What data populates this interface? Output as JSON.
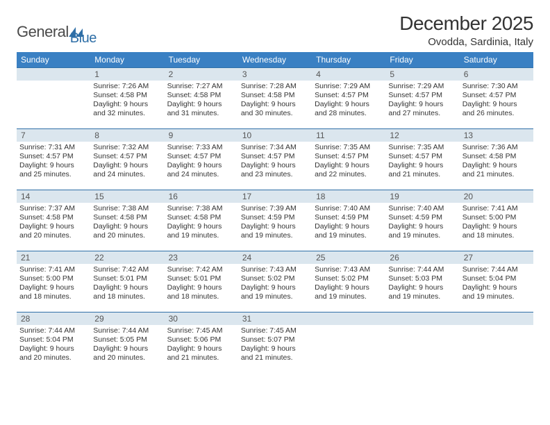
{
  "logo": {
    "part1": "General",
    "part2": "Blue"
  },
  "title": "December 2025",
  "location": "Ovodda, Sardinia, Italy",
  "colors": {
    "header_bg": "#3a80c3",
    "header_fg": "#ffffff",
    "daynum_bg": "#dbe6ee",
    "daynum_border": "#2f6fa7",
    "text": "#333333"
  },
  "weekdays": [
    "Sunday",
    "Monday",
    "Tuesday",
    "Wednesday",
    "Thursday",
    "Friday",
    "Saturday"
  ],
  "weeks": [
    [
      {
        "day": "",
        "sunrise": "",
        "sunset": "",
        "daylight": ""
      },
      {
        "day": "1",
        "sunrise": "Sunrise: 7:26 AM",
        "sunset": "Sunset: 4:58 PM",
        "daylight": "Daylight: 9 hours and 32 minutes."
      },
      {
        "day": "2",
        "sunrise": "Sunrise: 7:27 AM",
        "sunset": "Sunset: 4:58 PM",
        "daylight": "Daylight: 9 hours and 31 minutes."
      },
      {
        "day": "3",
        "sunrise": "Sunrise: 7:28 AM",
        "sunset": "Sunset: 4:58 PM",
        "daylight": "Daylight: 9 hours and 30 minutes."
      },
      {
        "day": "4",
        "sunrise": "Sunrise: 7:29 AM",
        "sunset": "Sunset: 4:57 PM",
        "daylight": "Daylight: 9 hours and 28 minutes."
      },
      {
        "day": "5",
        "sunrise": "Sunrise: 7:29 AM",
        "sunset": "Sunset: 4:57 PM",
        "daylight": "Daylight: 9 hours and 27 minutes."
      },
      {
        "day": "6",
        "sunrise": "Sunrise: 7:30 AM",
        "sunset": "Sunset: 4:57 PM",
        "daylight": "Daylight: 9 hours and 26 minutes."
      }
    ],
    [
      {
        "day": "7",
        "sunrise": "Sunrise: 7:31 AM",
        "sunset": "Sunset: 4:57 PM",
        "daylight": "Daylight: 9 hours and 25 minutes."
      },
      {
        "day": "8",
        "sunrise": "Sunrise: 7:32 AM",
        "sunset": "Sunset: 4:57 PM",
        "daylight": "Daylight: 9 hours and 24 minutes."
      },
      {
        "day": "9",
        "sunrise": "Sunrise: 7:33 AM",
        "sunset": "Sunset: 4:57 PM",
        "daylight": "Daylight: 9 hours and 24 minutes."
      },
      {
        "day": "10",
        "sunrise": "Sunrise: 7:34 AM",
        "sunset": "Sunset: 4:57 PM",
        "daylight": "Daylight: 9 hours and 23 minutes."
      },
      {
        "day": "11",
        "sunrise": "Sunrise: 7:35 AM",
        "sunset": "Sunset: 4:57 PM",
        "daylight": "Daylight: 9 hours and 22 minutes."
      },
      {
        "day": "12",
        "sunrise": "Sunrise: 7:35 AM",
        "sunset": "Sunset: 4:57 PM",
        "daylight": "Daylight: 9 hours and 21 minutes."
      },
      {
        "day": "13",
        "sunrise": "Sunrise: 7:36 AM",
        "sunset": "Sunset: 4:58 PM",
        "daylight": "Daylight: 9 hours and 21 minutes."
      }
    ],
    [
      {
        "day": "14",
        "sunrise": "Sunrise: 7:37 AM",
        "sunset": "Sunset: 4:58 PM",
        "daylight": "Daylight: 9 hours and 20 minutes."
      },
      {
        "day": "15",
        "sunrise": "Sunrise: 7:38 AM",
        "sunset": "Sunset: 4:58 PM",
        "daylight": "Daylight: 9 hours and 20 minutes."
      },
      {
        "day": "16",
        "sunrise": "Sunrise: 7:38 AM",
        "sunset": "Sunset: 4:58 PM",
        "daylight": "Daylight: 9 hours and 19 minutes."
      },
      {
        "day": "17",
        "sunrise": "Sunrise: 7:39 AM",
        "sunset": "Sunset: 4:59 PM",
        "daylight": "Daylight: 9 hours and 19 minutes."
      },
      {
        "day": "18",
        "sunrise": "Sunrise: 7:40 AM",
        "sunset": "Sunset: 4:59 PM",
        "daylight": "Daylight: 9 hours and 19 minutes."
      },
      {
        "day": "19",
        "sunrise": "Sunrise: 7:40 AM",
        "sunset": "Sunset: 4:59 PM",
        "daylight": "Daylight: 9 hours and 19 minutes."
      },
      {
        "day": "20",
        "sunrise": "Sunrise: 7:41 AM",
        "sunset": "Sunset: 5:00 PM",
        "daylight": "Daylight: 9 hours and 18 minutes."
      }
    ],
    [
      {
        "day": "21",
        "sunrise": "Sunrise: 7:41 AM",
        "sunset": "Sunset: 5:00 PM",
        "daylight": "Daylight: 9 hours and 18 minutes."
      },
      {
        "day": "22",
        "sunrise": "Sunrise: 7:42 AM",
        "sunset": "Sunset: 5:01 PM",
        "daylight": "Daylight: 9 hours and 18 minutes."
      },
      {
        "day": "23",
        "sunrise": "Sunrise: 7:42 AM",
        "sunset": "Sunset: 5:01 PM",
        "daylight": "Daylight: 9 hours and 18 minutes."
      },
      {
        "day": "24",
        "sunrise": "Sunrise: 7:43 AM",
        "sunset": "Sunset: 5:02 PM",
        "daylight": "Daylight: 9 hours and 19 minutes."
      },
      {
        "day": "25",
        "sunrise": "Sunrise: 7:43 AM",
        "sunset": "Sunset: 5:02 PM",
        "daylight": "Daylight: 9 hours and 19 minutes."
      },
      {
        "day": "26",
        "sunrise": "Sunrise: 7:44 AM",
        "sunset": "Sunset: 5:03 PM",
        "daylight": "Daylight: 9 hours and 19 minutes."
      },
      {
        "day": "27",
        "sunrise": "Sunrise: 7:44 AM",
        "sunset": "Sunset: 5:04 PM",
        "daylight": "Daylight: 9 hours and 19 minutes."
      }
    ],
    [
      {
        "day": "28",
        "sunrise": "Sunrise: 7:44 AM",
        "sunset": "Sunset: 5:04 PM",
        "daylight": "Daylight: 9 hours and 20 minutes."
      },
      {
        "day": "29",
        "sunrise": "Sunrise: 7:44 AM",
        "sunset": "Sunset: 5:05 PM",
        "daylight": "Daylight: 9 hours and 20 minutes."
      },
      {
        "day": "30",
        "sunrise": "Sunrise: 7:45 AM",
        "sunset": "Sunset: 5:06 PM",
        "daylight": "Daylight: 9 hours and 21 minutes."
      },
      {
        "day": "31",
        "sunrise": "Sunrise: 7:45 AM",
        "sunset": "Sunset: 5:07 PM",
        "daylight": "Daylight: 9 hours and 21 minutes."
      },
      {
        "day": "",
        "sunrise": "",
        "sunset": "",
        "daylight": ""
      },
      {
        "day": "",
        "sunrise": "",
        "sunset": "",
        "daylight": ""
      },
      {
        "day": "",
        "sunrise": "",
        "sunset": "",
        "daylight": ""
      }
    ]
  ]
}
